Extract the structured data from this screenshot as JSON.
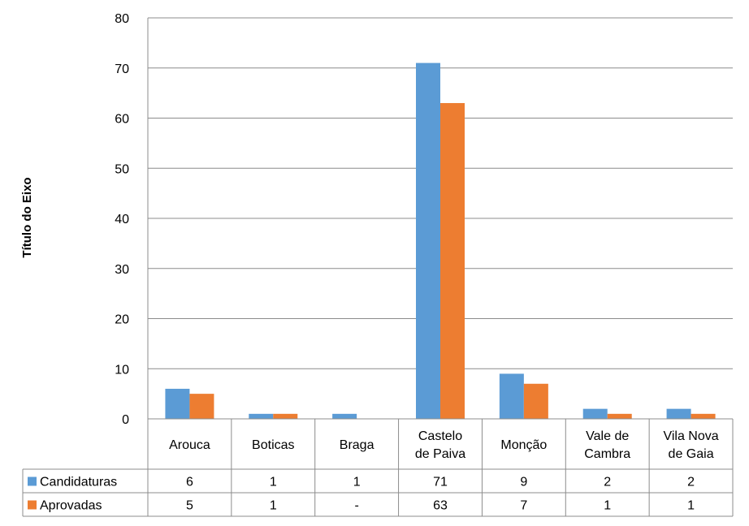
{
  "chart_data": {
    "type": "bar",
    "title": "",
    "ylabel": "Título do Eixo",
    "xlabel": "",
    "ylim": [
      0,
      80
    ],
    "ytick_step": 10,
    "grid": true,
    "legend": "data-table",
    "categories": [
      [
        "Arouca"
      ],
      [
        "Boticas"
      ],
      [
        "Braga"
      ],
      [
        "Castelo",
        "de Paiva"
      ],
      [
        "Monção"
      ],
      [
        "Vale de",
        "Cambra"
      ],
      [
        "Vila Nova",
        "de Gaia"
      ]
    ],
    "series": [
      {
        "name": "Candidaturas",
        "color": "#5B9BD5",
        "values": [
          6,
          1,
          1,
          71,
          9,
          2,
          2
        ],
        "labels": [
          "6",
          "1",
          "1",
          "71",
          "9",
          "2",
          "2"
        ]
      },
      {
        "name": "Aprovadas",
        "color": "#ED7D31",
        "values": [
          5,
          1,
          0,
          63,
          7,
          1,
          1
        ],
        "labels": [
          "5",
          "1",
          "-",
          "63",
          "7",
          "1",
          "1"
        ]
      }
    ]
  }
}
